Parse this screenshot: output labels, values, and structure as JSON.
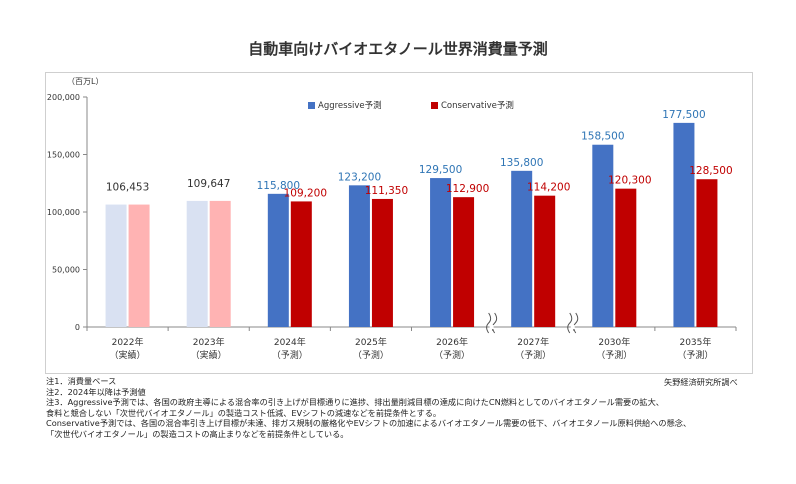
{
  "title": "自動車向けバイオエタノール世界消費量予測",
  "notes": [
    "注1．消費量ベース",
    "注2．2024年以降は予測値",
    "注3．Aggressive予測では、各国の政府主導による混合率の引き上げが目標通りに進捗、排出量削減目標の達成に向けたCN燃料としてのバイオエタノール需要の拡大、",
    "食料と競合しない「次世代バイオエタノール」の製造コスト低減、EVシフトの減速などを前提条件とする。",
    "Conservative予測では、各国の混合率引き上げ目標が未達、排ガス規制の厳格化やEVシフトの加速によるバイオエタノール需要の低下、バイオエタノール原料供給への懸念、",
    "「次世代バイオエタノール」の製造コストの高止まりなどを前提条件としている。"
  ],
  "source": "矢野経済研究所調べ",
  "chart_data": {
    "type": "bar",
    "title": "自動車向けバイオエタノール世界消費量予測",
    "unit_label": "（百万L）",
    "ylim": [
      0,
      200000
    ],
    "yticks": [
      0,
      50000,
      100000,
      150000,
      200000
    ],
    "ytick_labels": [
      "0",
      "50,000",
      "100,000",
      "150,000",
      "200,000"
    ],
    "grid": false,
    "legend_position": "top-center",
    "axis_break_after_index": [
      5,
      6
    ],
    "categories": [
      "2022年",
      "2023年",
      "2024年",
      "2025年",
      "2026年",
      "2027年",
      "2030年",
      "2035年"
    ],
    "category_sublabels": [
      "（実績）",
      "（実績）",
      "（予測）",
      "（予測）",
      "（予測）",
      "（予測）",
      "（予測）",
      "（予測）"
    ],
    "actual_count": 2,
    "actual_labels": [
      "106,453",
      "109,647"
    ],
    "series": [
      {
        "name": "Aggressive予測",
        "color": "#4472c4",
        "actual_color": "#d9e1f2",
        "label_color": "#2f75b5",
        "values": [
          106453,
          109647,
          115800,
          123200,
          129500,
          135800,
          158500,
          177500
        ],
        "labels": [
          "",
          "",
          "115,800",
          "123,200",
          "129,500",
          "135,800",
          "158,500",
          "177,500"
        ]
      },
      {
        "name": "Conservative予測",
        "color": "#c00000",
        "actual_color": "#ffb3b3",
        "label_color": "#c00000",
        "values": [
          106453,
          109647,
          109200,
          111350,
          112900,
          114200,
          120300,
          128500
        ],
        "labels": [
          "",
          "",
          "109,200",
          "111,350",
          "112,900",
          "114,200",
          "120,300",
          "128,500"
        ]
      }
    ]
  }
}
